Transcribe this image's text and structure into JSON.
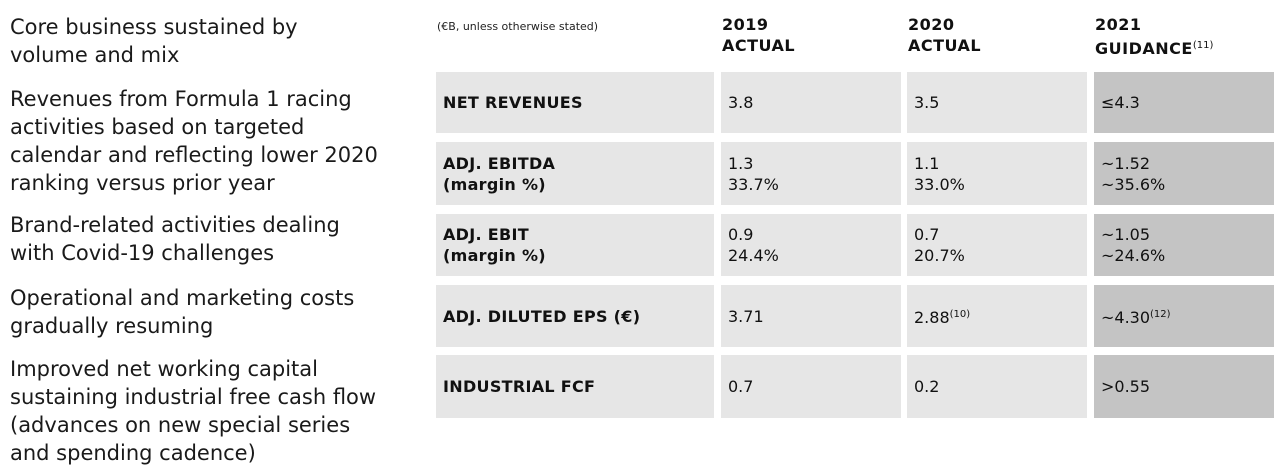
{
  "left_text": {
    "para1": "Core business sustained by\nvolume and mix",
    "para2": "Revenues from Formula 1 racing\nactivities based on targeted\ncalendar and reflecting lower 2020\nranking versus prior year",
    "para3": "Brand-related activities dealing\nwith Covid-19 challenges",
    "para4": "Operational and marketing costs\ngradually resuming",
    "para5": "Improved net working capital\nsustaining industrial free cash flow\n(advances on new special series\nand spending cadence)"
  },
  "table": {
    "note": "(€B, unless otherwise stated)",
    "headers": {
      "col_2019": "2019\nACTUAL",
      "col_2020": "2020\nACTUAL",
      "col_2021": "2021\nGUIDANCE",
      "col_2021_ref": "(11)"
    },
    "rows": [
      {
        "label": "NET REVENUES",
        "v2019": "3.8",
        "v2020": "3.5",
        "v2020_ref": "",
        "g2021": "≤4.3",
        "g2021_ref": ""
      },
      {
        "label": "ADJ. EBITDA\n(margin %)",
        "v2019": "1.3\n33.7%",
        "v2020": "1.1\n33.0%",
        "v2020_ref": "",
        "g2021": "~1.52\n~35.6%",
        "g2021_ref": ""
      },
      {
        "label": "ADJ. EBIT\n(margin %)",
        "v2019": "0.9\n24.4%",
        "v2020": "0.7\n20.7%",
        "v2020_ref": "",
        "g2021": "~1.05\n~24.6%",
        "g2021_ref": ""
      },
      {
        "label": "ADJ. DILUTED EPS (€)",
        "v2019": "3.71",
        "v2020": "2.88",
        "v2020_ref": "(10)",
        "g2021": "~4.30",
        "g2021_ref": "(12)"
      },
      {
        "label": "INDUSTRIAL FCF",
        "v2019": "0.7",
        "v2020": "0.2",
        "v2020_ref": "",
        "g2021": ">0.55",
        "g2021_ref": ""
      }
    ]
  }
}
